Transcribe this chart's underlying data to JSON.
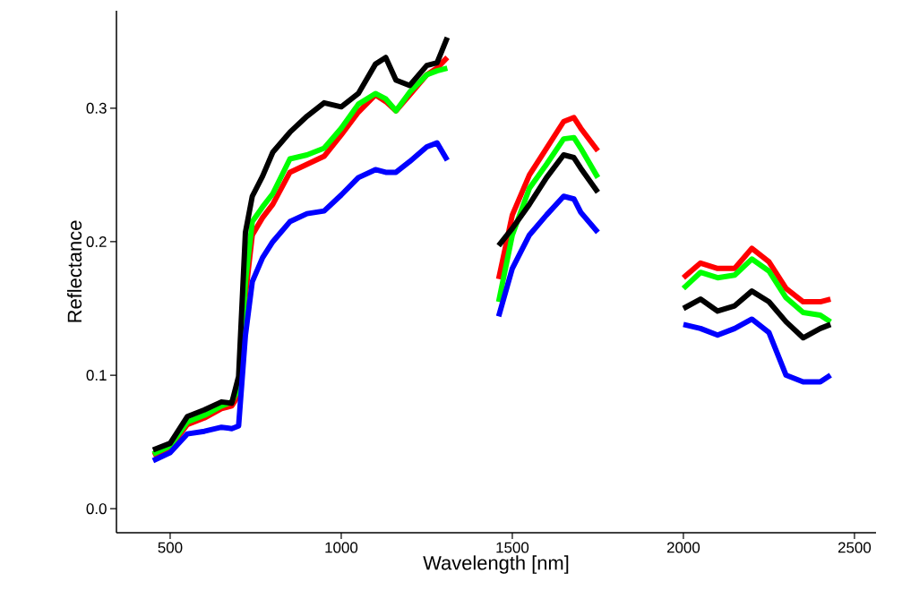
{
  "chart_data": {
    "type": "line",
    "xlabel": "Wavelength [nm]",
    "ylabel": "Reflectance",
    "x": [
      450,
      500,
      550,
      600,
      650,
      680,
      700,
      720,
      740,
      770,
      800,
      850,
      900,
      950,
      1000,
      1050,
      1100,
      1130,
      1160,
      1200,
      1250,
      1280,
      1310,
      1380,
      1460,
      1500,
      1550,
      1600,
      1650,
      1680,
      1700,
      1750,
      1870,
      2000,
      2050,
      2100,
      2150,
      2200,
      2250,
      2300,
      2350,
      2400,
      2430
    ],
    "xlim": [
      343,
      2563
    ],
    "xticks": [
      500,
      1000,
      1500,
      2000,
      2500
    ],
    "ylim": [
      -0.018,
      0.373
    ],
    "yticks": [
      {
        "value": 0,
        "label": "0.0"
      },
      0.1,
      0.2,
      0.3
    ],
    "series": [
      {
        "color": "#ff0000",
        "values": [
          0.04,
          0.046,
          0.063,
          0.068,
          0.075,
          0.077,
          0.085,
          0.16,
          0.205,
          0.218,
          0.228,
          0.252,
          0.258,
          0.264,
          0.28,
          0.297,
          0.31,
          0.305,
          0.298,
          0.31,
          0.325,
          0.33,
          0.338,
          null,
          0.172,
          0.22,
          0.25,
          0.27,
          0.29,
          0.293,
          0.285,
          0.268,
          null,
          0.173,
          0.184,
          0.18,
          0.18,
          0.195,
          0.185,
          0.165,
          0.155,
          0.155,
          0.157
        ]
      },
      {
        "color": "#00ff00",
        "values": [
          0.041,
          0.047,
          0.065,
          0.07,
          0.077,
          0.08,
          0.09,
          0.17,
          0.215,
          0.226,
          0.236,
          0.262,
          0.265,
          0.27,
          0.285,
          0.303,
          0.311,
          0.307,
          0.298,
          0.312,
          0.325,
          0.328,
          0.33,
          null,
          0.155,
          0.205,
          0.24,
          0.258,
          0.277,
          0.278,
          0.27,
          0.248,
          null,
          0.165,
          0.177,
          0.173,
          0.175,
          0.187,
          0.178,
          0.158,
          0.147,
          0.145,
          0.14
        ]
      },
      {
        "color": "#000000",
        "values": [
          0.044,
          0.049,
          0.069,
          0.074,
          0.08,
          0.079,
          0.099,
          0.207,
          0.234,
          0.249,
          0.267,
          0.282,
          0.294,
          0.304,
          0.301,
          0.311,
          0.333,
          0.338,
          0.321,
          0.317,
          0.332,
          0.334,
          0.353,
          null,
          0.197,
          0.21,
          0.228,
          0.248,
          0.265,
          0.263,
          0.255,
          0.237,
          null,
          0.15,
          0.157,
          0.148,
          0.152,
          0.163,
          0.155,
          0.14,
          0.128,
          0.135,
          0.138
        ]
      },
      {
        "color": "#0000ff",
        "values": [
          0.036,
          0.042,
          0.056,
          0.058,
          0.061,
          0.06,
          0.062,
          0.13,
          0.17,
          0.188,
          0.2,
          0.215,
          0.221,
          0.223,
          0.235,
          0.248,
          0.254,
          0.252,
          0.252,
          0.26,
          0.271,
          0.274,
          0.261,
          null,
          0.144,
          0.18,
          0.205,
          0.22,
          0.234,
          0.232,
          0.222,
          0.207,
          null,
          0.138,
          0.135,
          0.13,
          0.135,
          0.142,
          0.132,
          0.1,
          0.095,
          0.095,
          0.1
        ]
      }
    ]
  }
}
